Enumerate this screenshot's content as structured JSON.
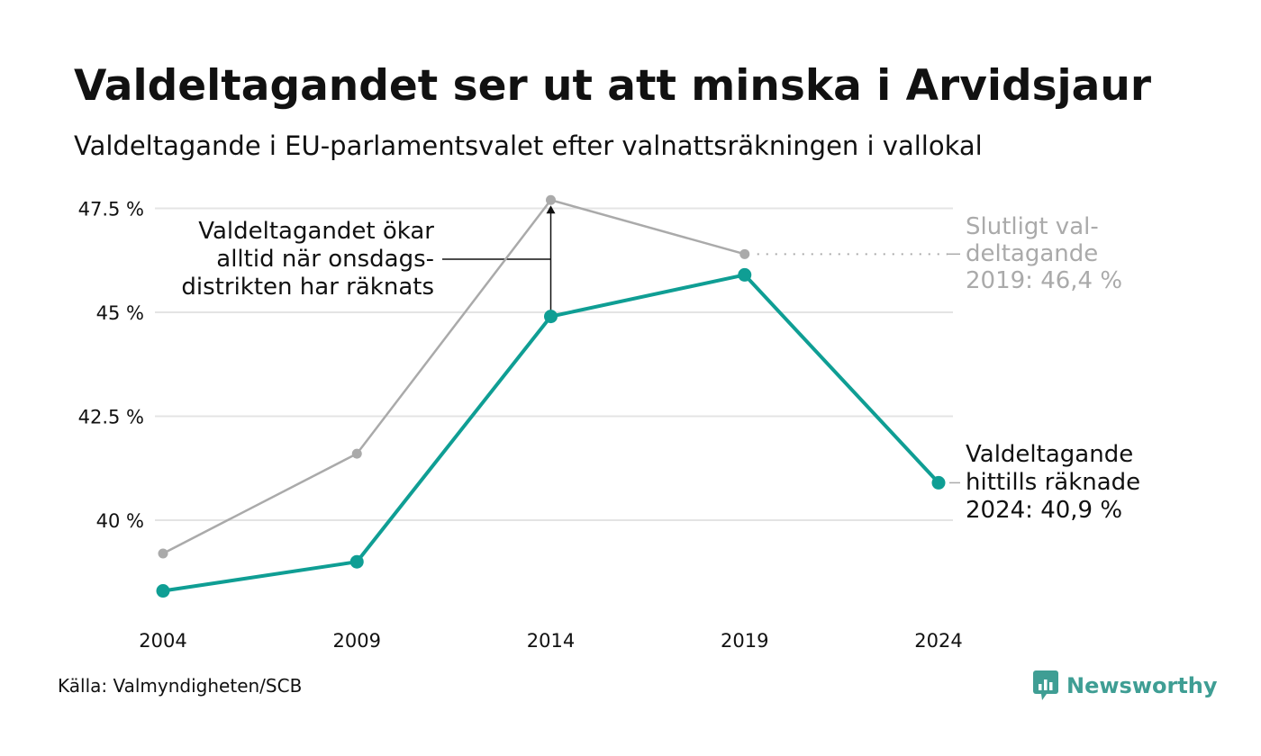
{
  "title": "Valdeltagandet ser ut att minska i Arvidsjaur",
  "subtitle": "Valdeltagande i EU-parlamentsvalet efter valnattsräkningen i vallokal",
  "source": "Källa: Valmyndigheten/SCB",
  "brand": {
    "name": "Newsworthy",
    "icon": "newsworthy-logo-icon",
    "color": "#3f9e94"
  },
  "chart_data": {
    "type": "line",
    "x": [
      2004,
      2009,
      2014,
      2019,
      2024
    ],
    "x_tick_labels": [
      "2004",
      "2009",
      "2014",
      "2019",
      "2024"
    ],
    "y_ticks": [
      40,
      42.5,
      45,
      47.5
    ],
    "y_tick_labels": [
      "40 %",
      "42.5 %",
      "45 %",
      "47.5 %"
    ],
    "ylim": [
      37.5,
      48
    ],
    "grid": true,
    "series": [
      {
        "key": "final",
        "values": [
          39.2,
          41.6,
          47.7,
          46.4,
          null
        ],
        "color": "#aaaaaa"
      },
      {
        "key": "preliminary",
        "values": [
          38.3,
          39.0,
          44.9,
          45.9,
          40.9
        ],
        "color": "#0f9e94"
      }
    ],
    "annotations": {
      "increase": [
        "Valdeltagandet ökar",
        "alltid när onsdags-",
        "distrikten har räknats"
      ],
      "final_2019": [
        "Slutligt val-",
        "deltagande",
        "2019: 46,4 %"
      ],
      "current_2024": [
        "Valdeltagande",
        "hittills räknade",
        "2024: 40,9 %"
      ]
    }
  }
}
